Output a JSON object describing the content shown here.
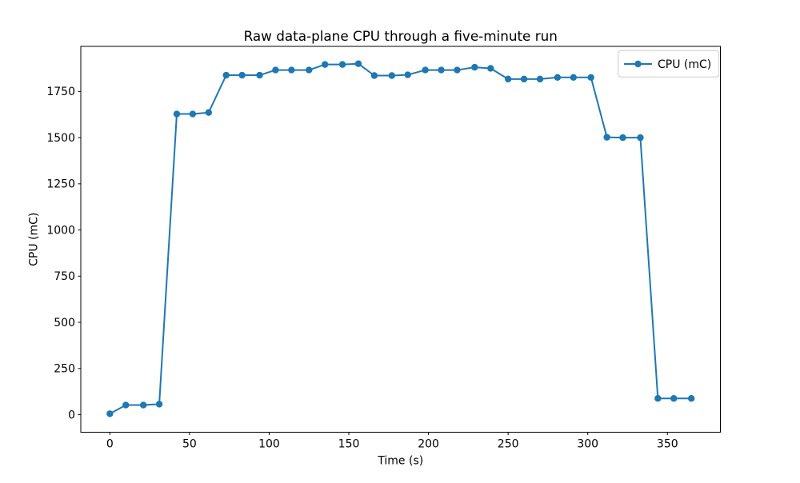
{
  "figure": {
    "background": "#ffffff",
    "axis_color": "#000000"
  },
  "chart_data": {
    "type": "line",
    "title": "Raw data-plane CPU through a five-minute run",
    "xlabel": "Time (s)",
    "ylabel": "CPU (mC)",
    "grid": false,
    "legend": {
      "position": "upper right",
      "label": "CPU (mC)",
      "border_color": "#cccccc",
      "background": "#ffffff"
    },
    "xlim": [
      -18.25,
      383.25
    ],
    "ylim": [
      -95,
      1994
    ],
    "x_ticks": [
      0,
      50,
      100,
      150,
      200,
      250,
      300,
      350
    ],
    "y_ticks": [
      0,
      250,
      500,
      750,
      1000,
      1250,
      1500,
      1750
    ],
    "series": [
      {
        "name": "CPU (mC)",
        "color": "#1f77b4",
        "marker": "o",
        "x": [
          0,
          10,
          21,
          31,
          42,
          52,
          62,
          73,
          83,
          94,
          104,
          114,
          125,
          135,
          146,
          156,
          166,
          177,
          187,
          198,
          208,
          218,
          229,
          239,
          250,
          260,
          270,
          281,
          291,
          302,
          312,
          322,
          333,
          344,
          354,
          365
        ],
        "y": [
          5,
          52,
          52,
          57,
          1628,
          1628,
          1636,
          1838,
          1838,
          1838,
          1866,
          1866,
          1866,
          1896,
          1896,
          1900,
          1836,
          1836,
          1840,
          1866,
          1866,
          1866,
          1881,
          1875,
          1817,
          1817,
          1817,
          1826,
          1826,
          1826,
          1502,
          1500,
          1500,
          88,
          88,
          88
        ]
      }
    ]
  }
}
